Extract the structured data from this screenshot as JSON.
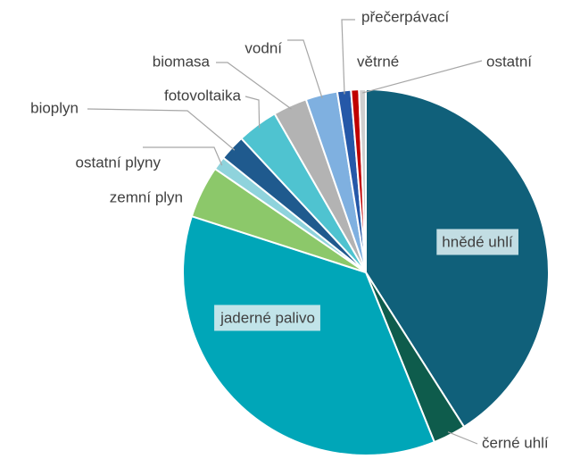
{
  "chart_data": {
    "type": "pie",
    "categories": [
      "hnědé uhlí",
      "černé uhlí",
      "jaderné palivo",
      "zemní plyn",
      "ostatní plyny",
      "bioplyn",
      "fotovoltaika",
      "biomasa",
      "vodní",
      "přečerpávací",
      "větrné",
      "ostatní"
    ],
    "values": [
      40.9,
      2.9,
      36,
      4.6,
      1.2,
      2.3,
      3.6,
      3,
      2.8,
      1.2,
      0.7,
      0.6
    ],
    "colors": [
      "#10607a",
      "#0e5c4c",
      "#00a6b8",
      "#8cc86a",
      "#8fd3dc",
      "#1f5a8e",
      "#4fc3d0",
      "#b3b3b3",
      "#7fb0e0",
      "#2558a8",
      "#c00000",
      "#cfcfcf"
    ]
  }
}
